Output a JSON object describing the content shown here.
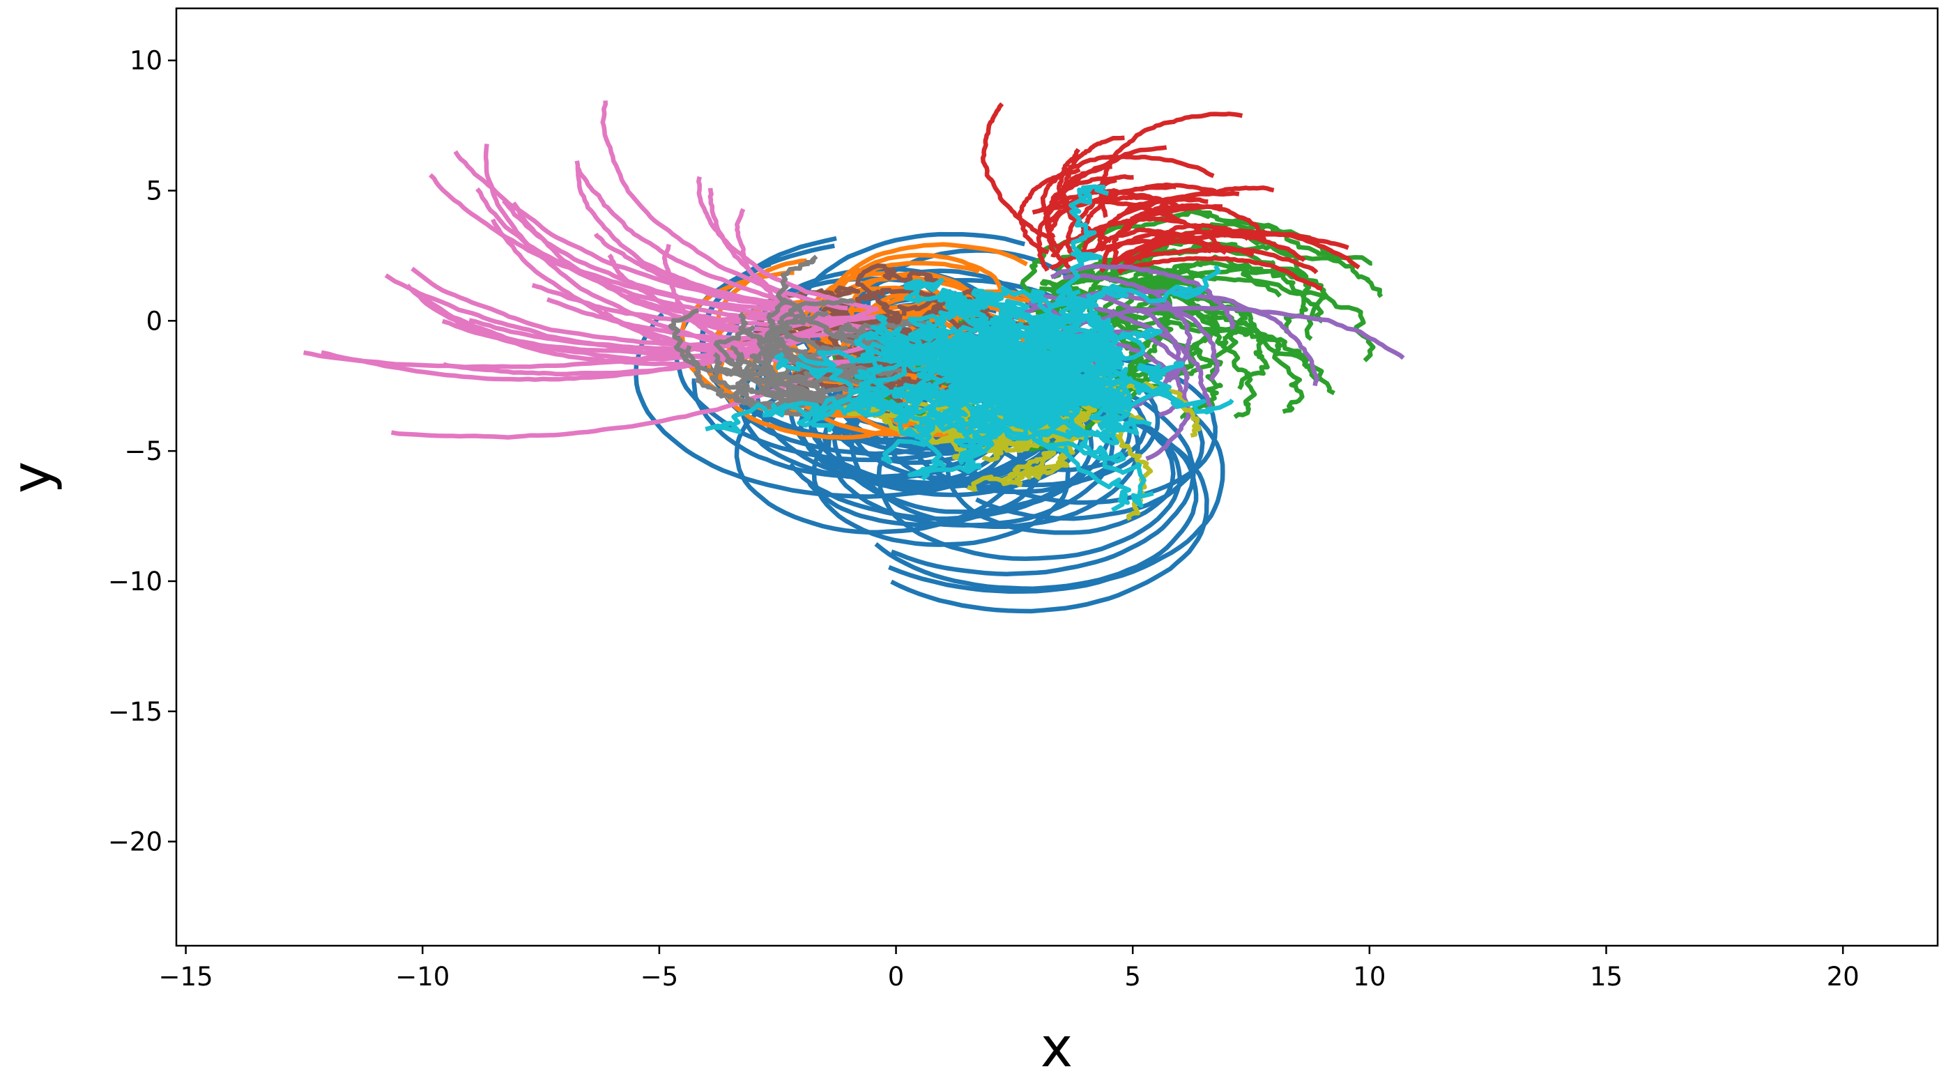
{
  "chart_data": {
    "type": "line",
    "title": "",
    "xlabel": "x",
    "ylabel": "y",
    "xlim": [
      -15.2,
      22
    ],
    "ylim": [
      -24,
      12
    ],
    "xticks": [
      -15,
      -10,
      -5,
      0,
      5,
      10,
      15,
      20
    ],
    "xtick_labels": [
      "−15",
      "−10",
      "−5",
      "0",
      "5",
      "10",
      "15",
      "20"
    ],
    "yticks": [
      -20,
      -15,
      -10,
      -5,
      0,
      5,
      10
    ],
    "ytick_labels": [
      "−20",
      "−15",
      "−10",
      "−5",
      "0",
      "5",
      "10"
    ],
    "grid": false,
    "legend": "none",
    "series": [
      {
        "color": "#1f77b4",
        "start": [
          3.0,
          -2.5
        ],
        "direction": "down-right",
        "count": 48,
        "arc_angle_deg": [
          -135,
          5
        ],
        "arc_length": [
          9,
          17
        ],
        "curvature": 0.075,
        "noise": 0.03
      },
      {
        "color": "#ff7f0e",
        "start": [
          1.5,
          -2.0
        ],
        "direction": "down-left",
        "count": 32,
        "arc_angle_deg": [
          -180,
          -85
        ],
        "arc_length": [
          6,
          11
        ],
        "curvature": 0.09,
        "noise": 0.05
      },
      {
        "color": "#2ca02c",
        "start": [
          4.0,
          0.5
        ],
        "direction": "up-right",
        "count": 32,
        "arc_angle_deg": [
          -55,
          115
        ],
        "arc_length": [
          4,
          8
        ],
        "curvature": 0.05,
        "noise": 0.25
      },
      {
        "color": "#d62728",
        "start": [
          4.0,
          3.0
        ],
        "direction": "up",
        "count": 30,
        "arc_angle_deg": [
          30,
          140
        ],
        "arc_length": [
          3,
          6
        ],
        "curvature": 0.03,
        "noise": 0.06
      },
      {
        "color": "#9467bd",
        "start": [
          3.5,
          0.5
        ],
        "direction": "right",
        "count": 10,
        "arc_angle_deg": [
          -25,
          50
        ],
        "arc_length": [
          5,
          9
        ],
        "curvature": 0.035,
        "noise": 0.08
      },
      {
        "color": "#8c564b",
        "start": [
          0.0,
          -1.0
        ],
        "direction": "center",
        "count": 28,
        "arc_angle_deg": [
          0,
          360
        ],
        "arc_length": [
          1.5,
          4
        ],
        "curvature": 0.06,
        "noise": 0.3
      },
      {
        "color": "#e377c2",
        "start": [
          -1.5,
          -0.5
        ],
        "direction": "left",
        "count": 30,
        "arc_angle_deg": [
          150,
          225
        ],
        "arc_length": [
          5,
          11
        ],
        "curvature": 0.02,
        "noise": 0.05
      },
      {
        "color": "#7f7f7f",
        "start": [
          -1.0,
          -2.0
        ],
        "direction": "left",
        "count": 22,
        "arc_angle_deg": [
          160,
          250
        ],
        "arc_length": [
          2,
          5
        ],
        "curvature": 0.04,
        "noise": 0.18
      },
      {
        "color": "#bcbd22",
        "start": [
          2.5,
          -2.5
        ],
        "direction": "center",
        "count": 38,
        "arc_angle_deg": [
          -100,
          40
        ],
        "arc_length": [
          2,
          5
        ],
        "curvature": 0.05,
        "noise": 0.22
      },
      {
        "color": "#17becf",
        "start": [
          2.5,
          -1.8
        ],
        "direction": "center",
        "count": 70,
        "arc_angle_deg": [
          0,
          360
        ],
        "arc_length": [
          1,
          4
        ],
        "curvature": 0.0,
        "noise": 0.55
      }
    ]
  }
}
